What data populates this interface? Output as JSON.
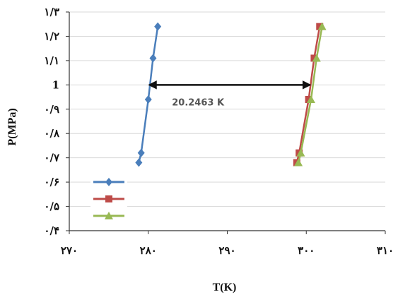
{
  "chart_data": {
    "type": "line",
    "xlabel": "T(K)",
    "ylabel": "P(MPa)",
    "xlim": [
      270,
      310
    ],
    "ylim": [
      0.4,
      1.3
    ],
    "x_ticks": [
      270,
      280,
      290,
      300,
      310
    ],
    "x_tick_labels": [
      "۲۷۰",
      "۲۸۰",
      "۲۹۰",
      "۳۰۰",
      "۳۱۰"
    ],
    "y_ticks": [
      0.4,
      0.5,
      0.6,
      0.7,
      0.8,
      0.9,
      1.0,
      1.1,
      1.2,
      1.3
    ],
    "y_tick_labels": [
      "۰/۴",
      "۰/۵",
      "۰/۶",
      "۰/۷",
      "۰/۸",
      "۰/۹",
      "1",
      "۱/۱",
      "۱/۲",
      "۱/۳"
    ],
    "grid": "horizontal",
    "legend": "bottom-left",
    "series": [
      {
        "color": "#4a7ebb",
        "marker": "diamond",
        "points": [
          [
            278.8,
            0.68
          ],
          [
            279.1,
            0.72
          ],
          [
            280.0,
            0.94
          ],
          [
            280.6,
            1.11
          ],
          [
            281.2,
            1.24
          ]
        ]
      },
      {
        "color": "#be4b48",
        "marker": "square",
        "points": [
          [
            298.8,
            0.68
          ],
          [
            299.1,
            0.72
          ],
          [
            300.3,
            0.94
          ],
          [
            301.0,
            1.11
          ],
          [
            301.7,
            1.24
          ]
        ]
      },
      {
        "color": "#98b954",
        "marker": "triangle",
        "points": [
          [
            299.0,
            0.68
          ],
          [
            299.3,
            0.72
          ],
          [
            300.6,
            0.94
          ],
          [
            301.3,
            1.11
          ],
          [
            302.0,
            1.24
          ]
        ]
      }
    ],
    "annotations": [
      {
        "type": "double-arrow",
        "x1": 280.0,
        "x2": 300.6,
        "y": 1.0,
        "label": "20.2463 K",
        "label_x": 286.3,
        "label_y": 0.93
      }
    ]
  }
}
